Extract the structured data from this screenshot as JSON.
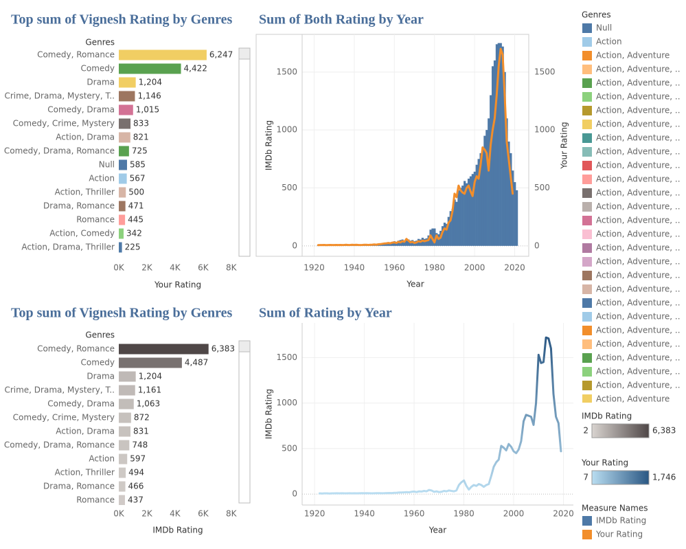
{
  "chart_data": [
    {
      "type": "barh",
      "title": "Top sum of Vignesh Rating by Genres",
      "y_label": "Genres",
      "x_label": "Your Rating",
      "categories": [
        "Comedy, Romance",
        "Comedy",
        "Drama",
        "Crime, Drama, Mystery, T..",
        "Comedy, Drama",
        "Comedy, Crime, Mystery",
        "Action, Drama",
        "Comedy, Drama, Romance",
        "Null",
        "Action",
        "Action, Thriller",
        "Drama, Romance",
        "Romance",
        "Action, Comedy",
        "Action, Drama, Thriller"
      ],
      "values": [
        6247,
        4422,
        1204,
        1146,
        1015,
        833,
        821,
        725,
        585,
        567,
        500,
        471,
        445,
        342,
        225
      ],
      "value_labels": [
        "6,247",
        "4,422",
        "1,204",
        "1,146",
        "1,015",
        "833",
        "821",
        "725",
        "585",
        "567",
        "500",
        "471",
        "445",
        "342",
        "225"
      ],
      "colors": [
        "#f1ce63",
        "#59a14f",
        "#f1ce63",
        "#9d7660",
        "#d37295",
        "#79706e",
        "#d7b5a6",
        "#59a14f",
        "#4e79a7",
        "#a0cbe8",
        "#d7b5a6",
        "#9d7660",
        "#ff9d9a",
        "#8cd17d",
        "#4e79a7"
      ],
      "xlim": [
        0,
        8400
      ],
      "xticks": [
        {
          "value": 0,
          "label": "0K"
        },
        {
          "value": 2000,
          "label": "2K"
        },
        {
          "value": 4000,
          "label": "4K"
        },
        {
          "value": 6000,
          "label": "6K"
        },
        {
          "value": 8000,
          "label": "8K"
        }
      ]
    },
    {
      "type": "combo",
      "title": "Sum of Both Rating by Year",
      "x_label": "Year",
      "y_label": "IMDb Rating",
      "y2_label": "Your Rating",
      "x": [
        1922,
        1923,
        1924,
        1925,
        1926,
        1927,
        1928,
        1929,
        1930,
        1931,
        1932,
        1933,
        1934,
        1935,
        1936,
        1937,
        1938,
        1939,
        1940,
        1941,
        1942,
        1943,
        1944,
        1945,
        1946,
        1947,
        1948,
        1949,
        1950,
        1951,
        1952,
        1953,
        1954,
        1955,
        1956,
        1957,
        1958,
        1959,
        1960,
        1961,
        1962,
        1963,
        1964,
        1965,
        1966,
        1967,
        1968,
        1969,
        1970,
        1971,
        1972,
        1973,
        1974,
        1975,
        1976,
        1977,
        1978,
        1979,
        1980,
        1981,
        1982,
        1983,
        1984,
        1985,
        1986,
        1987,
        1988,
        1989,
        1990,
        1991,
        1992,
        1993,
        1994,
        1995,
        1996,
        1997,
        1998,
        1999,
        2000,
        2001,
        2002,
        2003,
        2004,
        2005,
        2006,
        2007,
        2008,
        2009,
        2010,
        2011,
        2012,
        2013,
        2014,
        2015,
        2016,
        2017,
        2018,
        2019,
        2020,
        2021
      ],
      "series": [
        {
          "name": "IMDb Rating",
          "color": "#4e79a7",
          "mark": "bar",
          "values": [
            8,
            6,
            7,
            9,
            7,
            8,
            6,
            9,
            8,
            9,
            7,
            8,
            9,
            8,
            10,
            7,
            9,
            12,
            8,
            10,
            9,
            7,
            8,
            9,
            11,
            9,
            10,
            12,
            14,
            10,
            15,
            18,
            20,
            22,
            25,
            30,
            28,
            35,
            40,
            30,
            45,
            50,
            55,
            40,
            60,
            55,
            45,
            50,
            40,
            45,
            60,
            55,
            70,
            60,
            65,
            90,
            140,
            150,
            150,
            110,
            100,
            130,
            170,
            200,
            190,
            250,
            300,
            320,
            400,
            380,
            480,
            500,
            520,
            560,
            540,
            580,
            600,
            620,
            640,
            700,
            750,
            800,
            850,
            950,
            1000,
            1100,
            1300,
            1550,
            1600,
            1740,
            1750,
            1750,
            1720,
            1500,
            1100,
            900,
            800,
            650,
            550,
            480
          ]
        },
        {
          "name": "Your Rating",
          "color": "#f28e2b",
          "mark": "line",
          "axis": "y2",
          "values": [
            6,
            7,
            7,
            8,
            6,
            7,
            8,
            7,
            7,
            8,
            7,
            8,
            7,
            8,
            9,
            7,
            8,
            9,
            8,
            9,
            8,
            7,
            8,
            9,
            9,
            8,
            9,
            10,
            12,
            10,
            14,
            15,
            18,
            20,
            22,
            25,
            22,
            28,
            30,
            25,
            35,
            30,
            40,
            35,
            60,
            45,
            30,
            35,
            25,
            30,
            40,
            35,
            45,
            40,
            45,
            50,
            90,
            60,
            30,
            90,
            60,
            70,
            120,
            150,
            140,
            200,
            220,
            300,
            450,
            420,
            520,
            480,
            460,
            450,
            500,
            520,
            470,
            430,
            550,
            600,
            580,
            700,
            850,
            830,
            800,
            650,
            870,
            1000,
            1100,
            1300,
            1550,
            1700,
            1650,
            1300,
            900,
            750,
            600,
            450,
            null,
            null
          ]
        }
      ],
      "xlim": [
        1914,
        2027
      ],
      "xticks": [
        1920,
        1940,
        1960,
        1980,
        2000,
        2020
      ],
      "ylim": [
        -90,
        1825
      ],
      "yticks": [
        0,
        500,
        1000,
        1500
      ],
      "y2lim": [
        -90,
        1825
      ],
      "y2ticks": [
        0,
        500,
        1000,
        1500
      ],
      "grid": true
    },
    {
      "type": "barh",
      "title": "Top sum of Vignesh Rating by Genres",
      "y_label": "Genres",
      "x_label": "IMDb Rating",
      "categories": [
        "Comedy, Romance",
        "Comedy",
        "Drama",
        "Crime, Drama, Mystery, T..",
        "Comedy, Drama",
        "Comedy, Crime, Mystery",
        "Action, Drama",
        "Comedy, Drama, Romance",
        "Action",
        "Action, Thriller",
        "Drama, Romance",
        "Romance"
      ],
      "values": [
        6383,
        4487,
        1204,
        1161,
        1063,
        872,
        831,
        748,
        597,
        494,
        466,
        437
      ],
      "value_labels": [
        "6,383",
        "4,487",
        "1,204",
        "1,161",
        "1,063",
        "872",
        "831",
        "748",
        "597",
        "494",
        "466",
        "437"
      ],
      "xlim": [
        0,
        8400
      ],
      "xticks": [
        {
          "value": 0,
          "label": "0K"
        },
        {
          "value": 2000,
          "label": "2K"
        },
        {
          "value": 4000,
          "label": "4K"
        },
        {
          "value": 6000,
          "label": "6K"
        },
        {
          "value": 8000,
          "label": "8K"
        }
      ]
    },
    {
      "type": "line",
      "title": "Sum of Rating by Year",
      "x_label": "Year",
      "y_label": "IMDb Rating",
      "x": [
        1922,
        1923,
        1924,
        1925,
        1926,
        1927,
        1928,
        1929,
        1930,
        1931,
        1932,
        1933,
        1934,
        1935,
        1936,
        1937,
        1938,
        1939,
        1940,
        1941,
        1942,
        1943,
        1944,
        1945,
        1946,
        1947,
        1948,
        1949,
        1950,
        1951,
        1952,
        1953,
        1954,
        1955,
        1956,
        1957,
        1958,
        1959,
        1960,
        1961,
        1962,
        1963,
        1964,
        1965,
        1966,
        1967,
        1968,
        1969,
        1970,
        1971,
        1972,
        1973,
        1974,
        1975,
        1976,
        1977,
        1978,
        1979,
        1980,
        1981,
        1982,
        1983,
        1984,
        1985,
        1986,
        1987,
        1988,
        1989,
        1990,
        1991,
        1992,
        1993,
        1994,
        1995,
        1996,
        1997,
        1998,
        1999,
        2000,
        2001,
        2002,
        2003,
        2004,
        2005,
        2006,
        2007,
        2008,
        2009,
        2010,
        2011,
        2012,
        2013,
        2014,
        2015,
        2016,
        2017,
        2018,
        2019
      ],
      "values": [
        8,
        7,
        8,
        8,
        7,
        8,
        8,
        9,
        8,
        9,
        8,
        8,
        9,
        8,
        9,
        8,
        9,
        10,
        9,
        10,
        9,
        8,
        9,
        10,
        10,
        9,
        10,
        11,
        12,
        11,
        14,
        15,
        17,
        18,
        20,
        22,
        20,
        25,
        28,
        22,
        30,
        28,
        35,
        30,
        45,
        40,
        25,
        30,
        22,
        25,
        35,
        30,
        40,
        35,
        30,
        40,
        100,
        130,
        150,
        90,
        50,
        80,
        100,
        90,
        110,
        100,
        80,
        100,
        110,
        200,
        300,
        350,
        380,
        530,
        510,
        480,
        550,
        520,
        470,
        450,
        490,
        580,
        800,
        870,
        860,
        850,
        760,
        1000,
        1530,
        1440,
        1450,
        1720,
        1710,
        1600,
        1100,
        850,
        780,
        470
      ],
      "xlim": [
        1915,
        2024
      ],
      "xticks": [
        1920,
        1940,
        1960,
        1980,
        2000,
        2020
      ],
      "ylim": [
        -120,
        1880
      ],
      "yticks": [
        0,
        500,
        1000,
        1500
      ],
      "grid": true
    }
  ],
  "legend_panel": {
    "genres": {
      "title": "Genres",
      "items": [
        {
          "name": "Null",
          "color": "#4e79a7"
        },
        {
          "name": "Action",
          "color": "#a0cbe8"
        },
        {
          "name": "Action, Adventure",
          "color": "#f28e2b"
        },
        {
          "name": "Action, Adventure, ..",
          "color": "#ffbe7d"
        },
        {
          "name": "Action, Adventure, ..",
          "color": "#59a14f"
        },
        {
          "name": "Action, Adventure, ..",
          "color": "#8cd17d"
        },
        {
          "name": "Action, Adventure, ..",
          "color": "#b6992d"
        },
        {
          "name": "Action, Adventure, ..",
          "color": "#f1ce63"
        },
        {
          "name": "Action, Adventure, ..",
          "color": "#499894"
        },
        {
          "name": "Action, Adventure, ..",
          "color": "#86bcb6"
        },
        {
          "name": "Action, Adventure, ..",
          "color": "#e15759"
        },
        {
          "name": "Action, Adventure, ..",
          "color": "#ff9d9a"
        },
        {
          "name": "Action, Adventure, ..",
          "color": "#79706e"
        },
        {
          "name": "Action, Adventure, ..",
          "color": "#bab0ac"
        },
        {
          "name": "Action, Adventure, ..",
          "color": "#d37295"
        },
        {
          "name": "Action, Adventure, ..",
          "color": "#fabfd2"
        },
        {
          "name": "Action, Adventure, ..",
          "color": "#b07aa1"
        },
        {
          "name": "Action, Adventure, ..",
          "color": "#d4a6c8"
        },
        {
          "name": "Action, Adventure, ..",
          "color": "#9d7660"
        },
        {
          "name": "Action, Adventure, ..",
          "color": "#d7b5a6"
        },
        {
          "name": "Action, Adventure, ..",
          "color": "#4e79a7"
        },
        {
          "name": "Action, Adventure, ..",
          "color": "#a0cbe8"
        },
        {
          "name": "Action, Adventure, ..",
          "color": "#f28e2b"
        },
        {
          "name": "Action, Adventure, ..",
          "color": "#ffbe7d"
        },
        {
          "name": "Action, Adventure, ..",
          "color": "#59a14f"
        },
        {
          "name": "Action, Adventure, ..",
          "color": "#8cd17d"
        },
        {
          "name": "Action, Adventure, ..",
          "color": "#b6992d"
        },
        {
          "name": "Action, Adventure",
          "color": "#f1ce63"
        }
      ]
    },
    "color_legends": [
      {
        "title": "IMDb Rating",
        "min": 2,
        "max": {
          "value": 6383,
          "label": "6,383"
        },
        "colors": [
          "#d9d4d0",
          "#4f4747"
        ]
      },
      {
        "title": "Your Rating",
        "min": 7,
        "max": {
          "value": 1746,
          "label": "1,746"
        },
        "colors": [
          "#b9ddf1",
          "#2a5783"
        ]
      }
    ],
    "measure_legend": {
      "title": "Measure Names"
    }
  }
}
